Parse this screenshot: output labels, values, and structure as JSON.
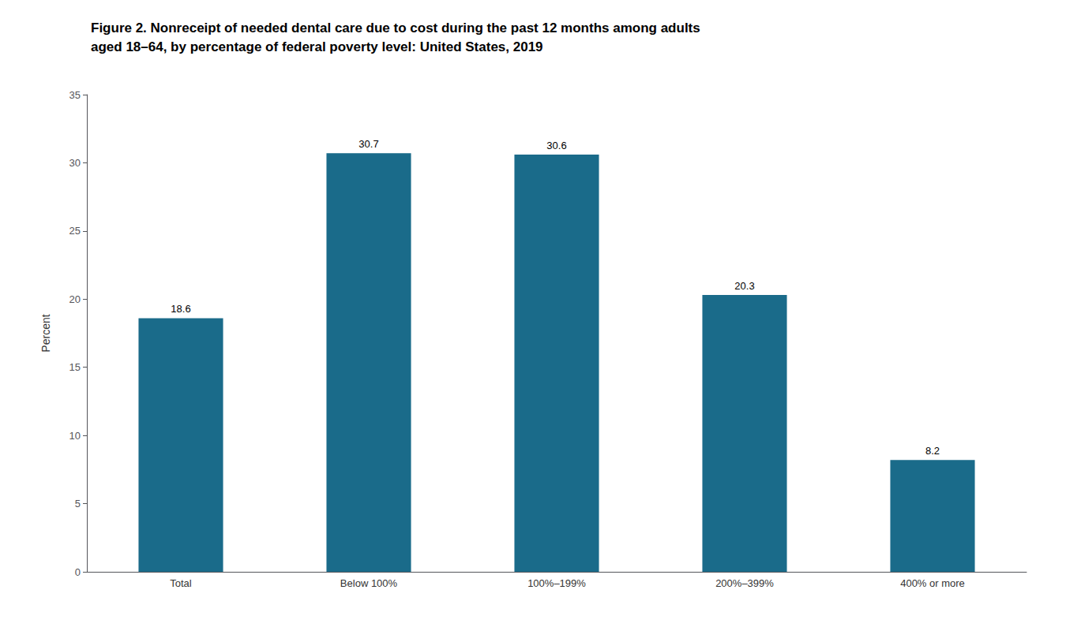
{
  "chart_data": {
    "type": "bar",
    "title": "Figure 2. Nonreceipt of needed dental care due to cost during the past 12 months among adults\naged 18–64, by percentage of federal poverty level: United States, 2019",
    "categories": [
      "Total",
      "Below 100%",
      "100%–199%",
      "200%–399%",
      "400% or more"
    ],
    "values": [
      18.6,
      30.7,
      30.6,
      20.3,
      8.2
    ],
    "color": "#1a6b8a",
    "ylabel": "Percent",
    "ylim": [
      0,
      35
    ],
    "yticks": [
      0,
      5,
      10,
      15,
      20,
      25,
      30,
      35
    ],
    "grid": false,
    "data_labels": true
  }
}
